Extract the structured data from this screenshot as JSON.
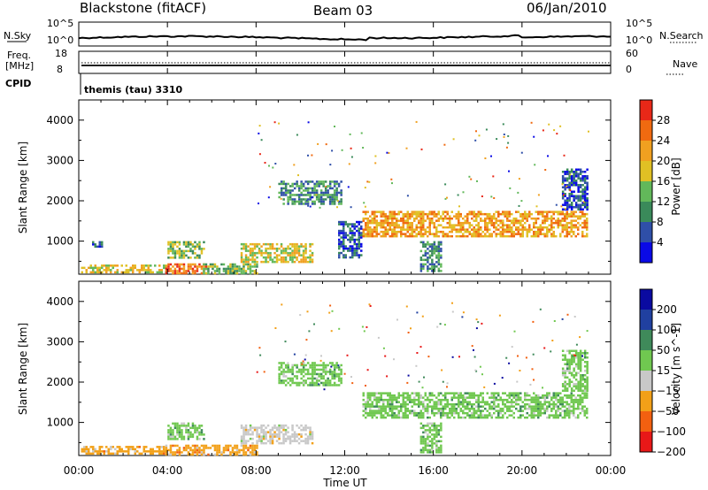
{
  "header": {
    "title": "Blackstone (fitACF)",
    "beam": "Beam 03",
    "date": "06/Jan/2010"
  },
  "top_panels": {
    "nsky": {
      "label": "N.Sky",
      "ticks": [
        "10^5",
        "10^0"
      ],
      "right_label": "N.Search",
      "right_ticks": [
        "10^5",
        "10^0"
      ]
    },
    "freq": {
      "label_1": "Freq.",
      "label_2": "[MHz]",
      "ticks": [
        "18",
        "8"
      ],
      "right_label": "Nave",
      "right_ticks": [
        "60",
        "0"
      ]
    },
    "cpid": {
      "label": "CPID",
      "value": "themis (tau) 3310"
    }
  },
  "chart_data": [
    {
      "type": "heatmap",
      "title": "",
      "xlabel": "",
      "ylabel": "Slant Range [km]",
      "colorbar_label": "Power [dB]",
      "colorbar_ticks": [
        "28",
        "24",
        "20",
        "16",
        "12",
        "8",
        "4"
      ],
      "colorbar_range": [
        0,
        30
      ],
      "xlim": [
        "00:00",
        "24:00"
      ],
      "ylim": [
        180,
        4500
      ],
      "yticks": [
        1000,
        2000,
        3000,
        4000
      ],
      "regions": [
        {
          "x": [
            0.1,
            3.9
          ],
          "y": [
            250,
            420
          ],
          "power": 18
        },
        {
          "x": [
            0.6,
            1.0
          ],
          "y": [
            850,
            1000
          ],
          "power": 6
        },
        {
          "x": [
            3.9,
            5.7
          ],
          "y": [
            200,
            450
          ],
          "power": 26
        },
        {
          "x": [
            4.0,
            5.6
          ],
          "y": [
            600,
            1000
          ],
          "power": 14
        },
        {
          "x": [
            5.6,
            8.0
          ],
          "y": [
            220,
            450
          ],
          "power": 14
        },
        {
          "x": [
            7.3,
            10.5
          ],
          "y": [
            500,
            950
          ],
          "power": 15
        },
        {
          "x": [
            9.0,
            11.8
          ],
          "y": [
            1900,
            2500
          ],
          "power": 10
        },
        {
          "x": [
            11.7,
            12.7
          ],
          "y": [
            600,
            1500
          ],
          "power": 6
        },
        {
          "x": [
            12.8,
            22.9
          ],
          "y": [
            1100,
            1750
          ],
          "power": 22
        },
        {
          "x": [
            15.4,
            16.3
          ],
          "y": [
            250,
            1000
          ],
          "power": 8
        },
        {
          "x": [
            21.8,
            22.9
          ],
          "y": [
            1800,
            2800
          ],
          "power": 6
        }
      ]
    },
    {
      "type": "heatmap",
      "title": "",
      "xlabel": "Time UT",
      "ylabel": "Slant Range [km]",
      "colorbar_label": "Velocity [m s^-1]",
      "colorbar_ticks": [
        "200",
        "100",
        "50",
        "15",
        "−15",
        "−50",
        "−100",
        "−200"
      ],
      "colorbar_range": [
        -250,
        250
      ],
      "xticks": [
        "00:00",
        "04:00",
        "08:00",
        "12:00",
        "16:00",
        "20:00",
        "00:00"
      ],
      "xlim": [
        "00:00",
        "24:00"
      ],
      "ylim": [
        180,
        4500
      ],
      "yticks": [
        1000,
        2000,
        3000,
        4000
      ],
      "regions": [
        {
          "x": [
            0.1,
            3.9
          ],
          "y": [
            250,
            420
          ],
          "velocity": -60
        },
        {
          "x": [
            3.9,
            5.7
          ],
          "y": [
            200,
            450
          ],
          "velocity": -70
        },
        {
          "x": [
            4.0,
            5.6
          ],
          "y": [
            600,
            1000
          ],
          "velocity": 0
        },
        {
          "x": [
            5.6,
            8.0
          ],
          "y": [
            220,
            450
          ],
          "velocity": -60
        },
        {
          "x": [
            7.3,
            10.5
          ],
          "y": [
            500,
            950
          ],
          "velocity": -40
        },
        {
          "x": [
            9.0,
            11.8
          ],
          "y": [
            1900,
            2500
          ],
          "velocity": 0
        },
        {
          "x": [
            12.8,
            22.9
          ],
          "y": [
            1100,
            1750
          ],
          "velocity": 0
        },
        {
          "x": [
            15.4,
            16.3
          ],
          "y": [
            250,
            1000
          ],
          "velocity": 0
        },
        {
          "x": [
            21.8,
            22.9
          ],
          "y": [
            1800,
            2800
          ],
          "velocity": 0
        }
      ]
    }
  ],
  "colors": {
    "power_scale": [
      "#0a0ae6",
      "#2f4fa8",
      "#3a8a5a",
      "#62b85a",
      "#e0c024",
      "#f0a020",
      "#f06a10",
      "#e82818"
    ],
    "velocity_scale": [
      "#e81818",
      "#f26010",
      "#f2a018",
      "#c8c8c8",
      "#70c850",
      "#3f8a5a",
      "#2040a0",
      "#0a0aa0"
    ]
  }
}
